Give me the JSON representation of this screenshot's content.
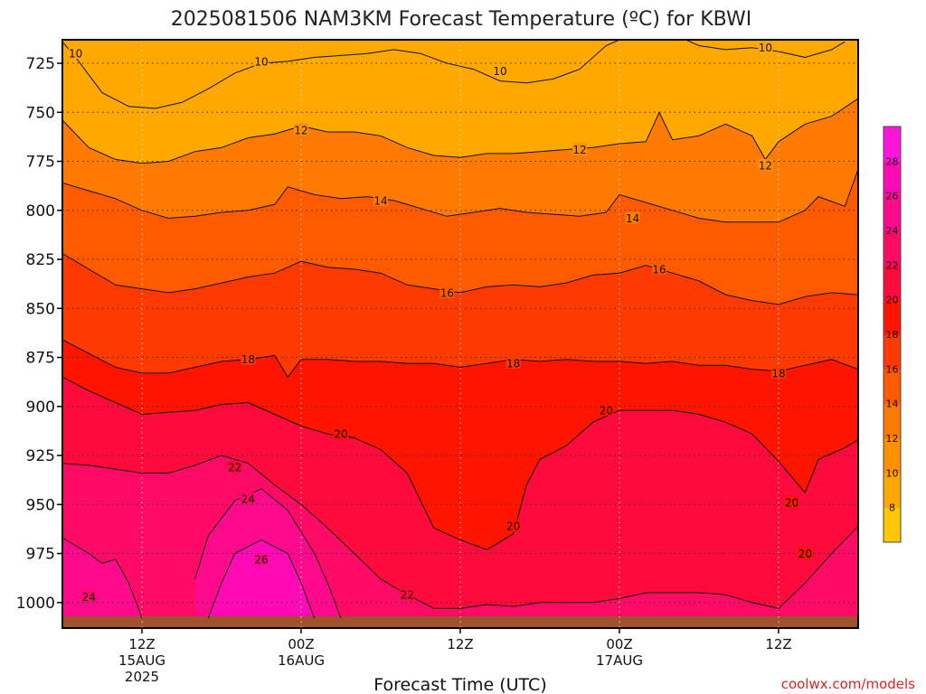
{
  "chart_data": {
    "type": "heatmap",
    "title": "2025081506 NAM3KM Forecast Temperature (ºC) for KBWI",
    "xlabel": "Forecast Time (UTC)",
    "ylabel": "",
    "y_axis": {
      "unit": "hPa",
      "inverted": true,
      "ylim": [
        1013,
        713
      ],
      "ticks": [
        725,
        750,
        775,
        800,
        825,
        850,
        875,
        900,
        925,
        950,
        975,
        1000
      ]
    },
    "x_axis": {
      "xlim_hours": [
        6,
        66
      ],
      "ticks": [
        {
          "hour": 12,
          "lines": [
            "12Z",
            "15AUG",
            "2025"
          ]
        },
        {
          "hour": 24,
          "lines": [
            "00Z",
            "16AUG"
          ]
        },
        {
          "hour": 36,
          "lines": [
            "12Z"
          ]
        },
        {
          "hour": 48,
          "lines": [
            "00Z",
            "17AUG"
          ]
        },
        {
          "hour": 60,
          "lines": [
            "12Z"
          ]
        }
      ]
    },
    "grid": true,
    "ground_color": "#a0522d",
    "colorbar": {
      "ticks": [
        8,
        10,
        12,
        14,
        16,
        18,
        20,
        22,
        24,
        26,
        28
      ],
      "colors": [
        "#ffc800",
        "#ffa800",
        "#ff9100",
        "#ff7a00",
        "#ff5a00",
        "#ff3a00",
        "#ff1400",
        "#ff0a3c",
        "#ff0a64",
        "#ff0a8c",
        "#ff0ab4",
        "#ff14dc"
      ]
    },
    "isotherms": [
      {
        "temp": 10,
        "points": [
          [
            6,
            714
          ],
          [
            7,
            722
          ],
          [
            9,
            740
          ],
          [
            11,
            747
          ],
          [
            13,
            748
          ],
          [
            15,
            745
          ],
          [
            17,
            738
          ],
          [
            19,
            730
          ],
          [
            21,
            725
          ],
          [
            23,
            724
          ],
          [
            25,
            722
          ],
          [
            27,
            721
          ],
          [
            29,
            720
          ],
          [
            31,
            718
          ],
          [
            33,
            720
          ],
          [
            35,
            725
          ],
          [
            37,
            728
          ],
          [
            39,
            734
          ],
          [
            41,
            735
          ],
          [
            43,
            733
          ],
          [
            45,
            728
          ],
          [
            47,
            716
          ],
          [
            48,
            713
          ]
        ]
      },
      {
        "temp": 10,
        "points": [
          [
            53,
            713
          ],
          [
            54,
            716
          ],
          [
            56,
            718
          ],
          [
            58,
            717
          ],
          [
            60,
            719
          ],
          [
            62,
            722
          ],
          [
            64,
            718
          ],
          [
            65,
            714
          ]
        ]
      },
      {
        "temp": 12,
        "points": [
          [
            6,
            754
          ],
          [
            8,
            768
          ],
          [
            10,
            774
          ],
          [
            12,
            776
          ],
          [
            14,
            775
          ],
          [
            16,
            770
          ],
          [
            18,
            768
          ],
          [
            20,
            763
          ],
          [
            22,
            761
          ],
          [
            24,
            757
          ],
          [
            26,
            760
          ],
          [
            28,
            760
          ],
          [
            30,
            762
          ],
          [
            32,
            768
          ],
          [
            34,
            772
          ],
          [
            36,
            773
          ],
          [
            38,
            771
          ],
          [
            40,
            771
          ],
          [
            42,
            770
          ],
          [
            44,
            769
          ],
          [
            46,
            768
          ],
          [
            48,
            766
          ],
          [
            50,
            765
          ],
          [
            51,
            750
          ],
          [
            52,
            764
          ],
          [
            54,
            762
          ],
          [
            56,
            756
          ],
          [
            58,
            762
          ],
          [
            59,
            774
          ],
          [
            60,
            765
          ],
          [
            62,
            756
          ],
          [
            64,
            752
          ],
          [
            66,
            743
          ]
        ]
      },
      {
        "temp": 14,
        "points": [
          [
            6,
            786
          ],
          [
            8,
            790
          ],
          [
            10,
            794
          ],
          [
            12,
            800
          ],
          [
            14,
            804
          ],
          [
            16,
            803
          ],
          [
            18,
            801
          ],
          [
            20,
            800
          ],
          [
            22,
            797
          ],
          [
            23,
            788
          ],
          [
            25,
            792
          ],
          [
            27,
            794
          ],
          [
            29,
            793
          ],
          [
            31,
            795
          ],
          [
            33,
            799
          ],
          [
            35,
            803
          ],
          [
            37,
            801
          ],
          [
            39,
            799
          ],
          [
            41,
            801
          ],
          [
            43,
            802
          ],
          [
            45,
            803
          ],
          [
            47,
            801
          ],
          [
            48,
            792
          ],
          [
            50,
            796
          ],
          [
            52,
            800
          ],
          [
            54,
            804
          ],
          [
            56,
            806
          ],
          [
            58,
            806
          ],
          [
            60,
            806
          ],
          [
            62,
            800
          ],
          [
            63,
            793
          ],
          [
            65,
            798
          ],
          [
            66,
            779
          ]
        ]
      },
      {
        "temp": 16,
        "points": [
          [
            6,
            822
          ],
          [
            8,
            830
          ],
          [
            10,
            838
          ],
          [
            12,
            840
          ],
          [
            14,
            842
          ],
          [
            16,
            840
          ],
          [
            18,
            837
          ],
          [
            20,
            834
          ],
          [
            22,
            832
          ],
          [
            24,
            826
          ],
          [
            26,
            829
          ],
          [
            28,
            830
          ],
          [
            30,
            832
          ],
          [
            32,
            838
          ],
          [
            34,
            840
          ],
          [
            36,
            842
          ],
          [
            38,
            839
          ],
          [
            40,
            838
          ],
          [
            42,
            839
          ],
          [
            44,
            837
          ],
          [
            46,
            833
          ],
          [
            48,
            832
          ],
          [
            50,
            828
          ],
          [
            52,
            832
          ],
          [
            54,
            836
          ],
          [
            56,
            843
          ],
          [
            58,
            846
          ],
          [
            60,
            848
          ],
          [
            62,
            844
          ],
          [
            64,
            842
          ],
          [
            66,
            843
          ]
        ]
      },
      {
        "temp": 18,
        "points": [
          [
            6,
            866
          ],
          [
            8,
            873
          ],
          [
            10,
            880
          ],
          [
            12,
            883
          ],
          [
            14,
            883
          ],
          [
            16,
            880
          ],
          [
            18,
            877
          ],
          [
            20,
            876
          ],
          [
            22,
            874
          ],
          [
            23,
            885
          ],
          [
            24,
            876
          ],
          [
            26,
            876
          ],
          [
            28,
            877
          ],
          [
            30,
            877
          ],
          [
            32,
            878
          ],
          [
            34,
            878
          ],
          [
            36,
            880
          ],
          [
            38,
            878
          ],
          [
            40,
            876
          ],
          [
            42,
            877
          ],
          [
            44,
            876
          ],
          [
            46,
            877
          ],
          [
            48,
            877
          ],
          [
            50,
            878
          ],
          [
            52,
            877
          ],
          [
            54,
            879
          ],
          [
            56,
            879
          ],
          [
            58,
            881
          ],
          [
            60,
            882
          ],
          [
            62,
            879
          ],
          [
            64,
            876
          ],
          [
            66,
            881
          ]
        ]
      },
      {
        "temp": 20,
        "points": [
          [
            6,
            885
          ],
          [
            8,
            892
          ],
          [
            10,
            898
          ],
          [
            12,
            904
          ],
          [
            14,
            903
          ],
          [
            16,
            902
          ],
          [
            18,
            899
          ],
          [
            20,
            898
          ],
          [
            22,
            904
          ],
          [
            24,
            910
          ],
          [
            26,
            914
          ],
          [
            28,
            916
          ],
          [
            30,
            922
          ],
          [
            32,
            934
          ],
          [
            33,
            948
          ],
          [
            34,
            962
          ],
          [
            36,
            968
          ],
          [
            38,
            973
          ],
          [
            40,
            965
          ],
          [
            41,
            940
          ],
          [
            42,
            927
          ],
          [
            44,
            920
          ],
          [
            46,
            908
          ],
          [
            48,
            902
          ],
          [
            50,
            902
          ],
          [
            52,
            902
          ],
          [
            54,
            904
          ],
          [
            56,
            908
          ],
          [
            58,
            914
          ],
          [
            60,
            928
          ],
          [
            62,
            944
          ],
          [
            63,
            927
          ],
          [
            65,
            921
          ],
          [
            66,
            917
          ]
        ]
      },
      {
        "temp": 22,
        "points": [
          [
            6,
            929
          ],
          [
            8,
            930
          ],
          [
            10,
            932
          ],
          [
            12,
            934
          ],
          [
            14,
            934
          ],
          [
            16,
            930
          ],
          [
            18,
            925
          ],
          [
            20,
            929
          ],
          [
            22,
            940
          ],
          [
            24,
            950
          ],
          [
            26,
            962
          ],
          [
            28,
            975
          ],
          [
            30,
            988
          ],
          [
            32,
            996
          ],
          [
            34,
            1003
          ],
          [
            36,
            1003
          ],
          [
            38,
            1001
          ],
          [
            40,
            1002
          ],
          [
            42,
            1000
          ],
          [
            44,
            1000
          ],
          [
            46,
            1000
          ],
          [
            48,
            998
          ],
          [
            50,
            995
          ],
          [
            52,
            995
          ],
          [
            54,
            995
          ],
          [
            56,
            996
          ],
          [
            58,
            1000
          ],
          [
            60,
            1003
          ],
          [
            62,
            990
          ],
          [
            64,
            975
          ],
          [
            66,
            961
          ]
        ]
      },
      {
        "temp": 24,
        "points": [
          [
            6,
            967
          ],
          [
            8,
            975
          ],
          [
            9,
            980
          ],
          [
            10,
            978
          ],
          [
            11,
            990
          ],
          [
            12,
            1008
          ]
        ]
      },
      {
        "temp": 24,
        "points": [
          [
            16,
            988
          ],
          [
            17,
            966
          ],
          [
            19,
            948
          ],
          [
            21,
            942
          ],
          [
            23,
            953
          ],
          [
            25,
            975
          ],
          [
            26,
            990
          ],
          [
            27,
            1008
          ]
        ]
      },
      {
        "temp": 26,
        "points": [
          [
            17,
            1008
          ],
          [
            18,
            990
          ],
          [
            19,
            975
          ],
          [
            21,
            968
          ],
          [
            23,
            975
          ],
          [
            24,
            990
          ],
          [
            25,
            1008
          ]
        ]
      }
    ],
    "contour_labels": [
      {
        "text": "10",
        "hour": 7,
        "hpa": 720
      },
      {
        "text": "10",
        "hour": 21,
        "hpa": 724
      },
      {
        "text": "10",
        "hour": 39,
        "hpa": 729
      },
      {
        "text": "10",
        "hour": 59,
        "hpa": 717
      },
      {
        "text": "12",
        "hour": 24,
        "hpa": 759
      },
      {
        "text": "12",
        "hour": 45,
        "hpa": 769
      },
      {
        "text": "12",
        "hour": 59,
        "hpa": 777
      },
      {
        "text": "14",
        "hour": 30,
        "hpa": 795
      },
      {
        "text": "14",
        "hour": 49,
        "hpa": 804
      },
      {
        "text": "16",
        "hour": 35,
        "hpa": 842
      },
      {
        "text": "16",
        "hour": 51,
        "hpa": 830
      },
      {
        "text": "18",
        "hour": 20,
        "hpa": 876
      },
      {
        "text": "18",
        "hour": 40,
        "hpa": 878
      },
      {
        "text": "18",
        "hour": 60,
        "hpa": 883
      },
      {
        "text": "20",
        "hour": 27,
        "hpa": 914
      },
      {
        "text": "20",
        "hour": 47,
        "hpa": 902
      },
      {
        "text": "20",
        "hour": 40,
        "hpa": 961
      },
      {
        "text": "20",
        "hour": 61,
        "hpa": 949
      },
      {
        "text": "20",
        "hour": 62,
        "hpa": 975
      },
      {
        "text": "22",
        "hour": 19,
        "hpa": 931
      },
      {
        "text": "22",
        "hour": 32,
        "hpa": 996
      },
      {
        "text": "24",
        "hour": 8,
        "hpa": 997
      },
      {
        "text": "24",
        "hour": 20,
        "hpa": 947
      },
      {
        "text": "26",
        "hour": 21,
        "hpa": 978
      }
    ]
  },
  "credit": "coolwx.com/models"
}
